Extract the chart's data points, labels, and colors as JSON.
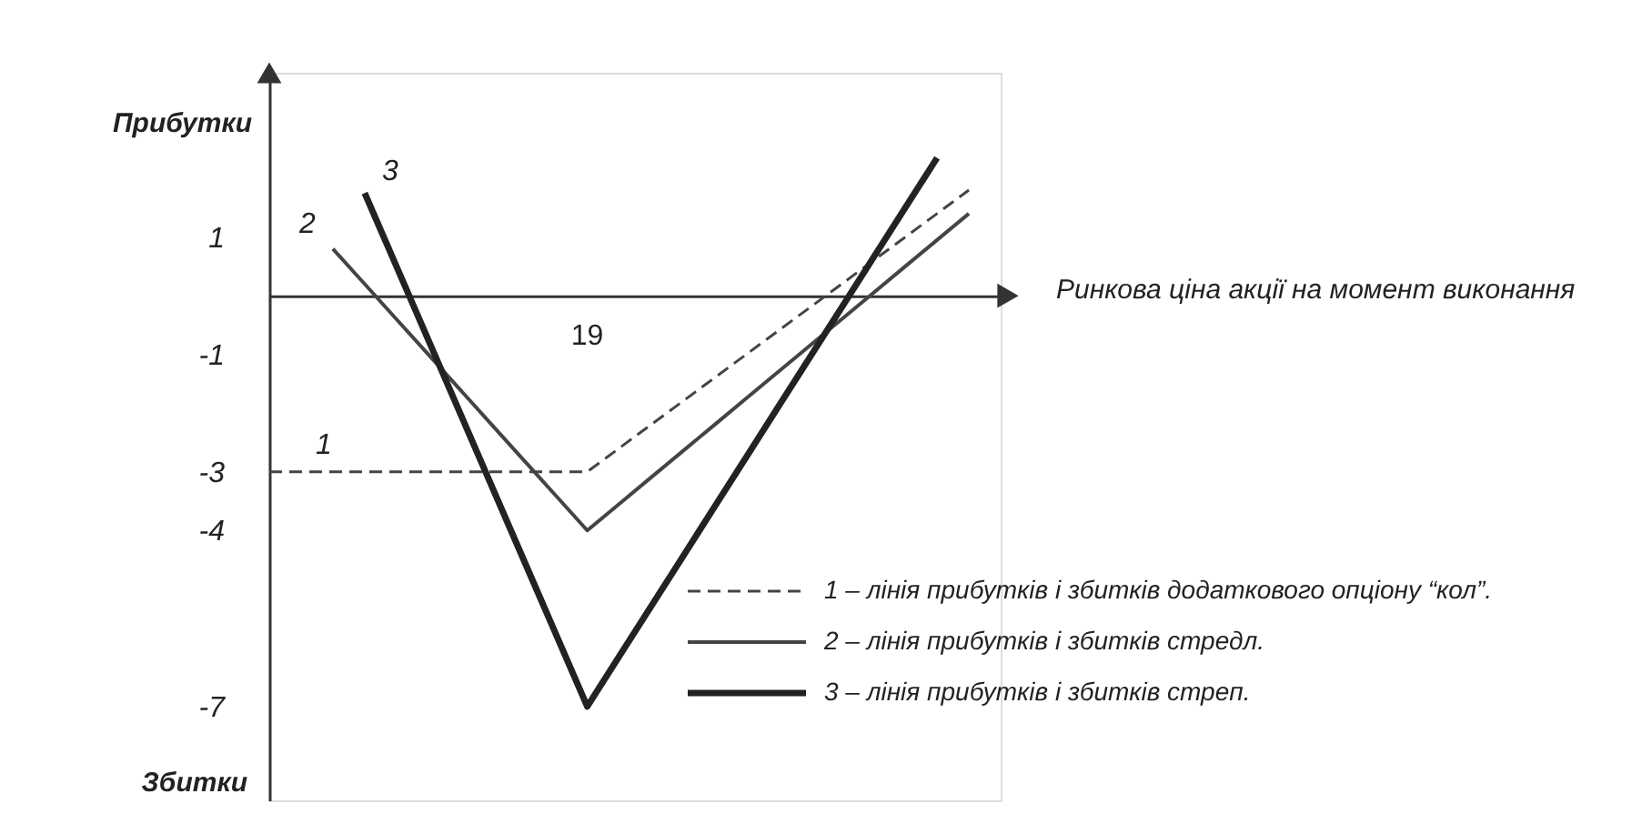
{
  "chart_data": {
    "type": "line",
    "ylabel": "Прибутки",
    "xlabel": "Ринкова ціна акції на момент виконання",
    "categories": [
      null,
      null,
      null,
      null,
      null,
      null,
      null,
      null,
      null,
      null,
      null,
      null,
      null,
      null,
      null,
      null,
      null,
      null,
      null,
      null,
      null,
      null,
      null,
      null
    ],
    "ylim": [
      -8.6,
      3.8
    ],
    "yticks": [
      1,
      {
        "value": -1,
        "label": "-1"
      },
      {
        "value": -3,
        "label": "-3"
      },
      {
        "value": -4,
        "label": "-4"
      },
      {
        "value": -7,
        "label": "-7"
      }
    ],
    "grid": false,
    "legend": "bottom right",
    "series": [
      {
        "name": "1 – лінія прибутків і збитків додаткового опціону “кол”.",
        "color": "#444444",
        "line_style": "dashed",
        "values": [
          -3,
          -3,
          -3,
          -3,
          -3,
          -3,
          -3,
          -3,
          -3,
          -3,
          -3,
          -2.6,
          -2.2,
          -1.8,
          -1.4,
          -1,
          -0.6,
          -0.2,
          0.2,
          0.6,
          1,
          1.4,
          1.8,
          null
        ]
      },
      {
        "name": "2 – лінія прибутків і збитків стредл.",
        "color": "#444444",
        "line_style": "solid",
        "values": [
          null,
          null,
          0.8,
          0.2,
          -0.4,
          -1,
          -1.6,
          -2.2,
          -2.8,
          -3.4,
          -4,
          -3.55,
          -3.1,
          -2.65,
          -2.2,
          -1.75,
          -1.3,
          -0.85,
          -0.4,
          0.05,
          0.5,
          0.95,
          1.4,
          null
        ]
      },
      {
        "name": "3 – лінія прибутків і збитків стреп.",
        "color": "#222222",
        "line_style": "solid",
        "values": [
          null,
          null,
          null,
          1.75,
          0.5,
          -0.75,
          -2,
          -3.25,
          -4.5,
          -5.75,
          -7,
          -6.15,
          -5.3,
          -4.45,
          -3.6,
          -2.75,
          -1.9,
          -1.05,
          -0.2,
          0.65,
          1.5,
          2.35,
          null,
          null
        ]
      }
    ],
    "annotations": [
      "1",
      "2",
      "3",
      "19",
      "Збитки"
    ]
  }
}
